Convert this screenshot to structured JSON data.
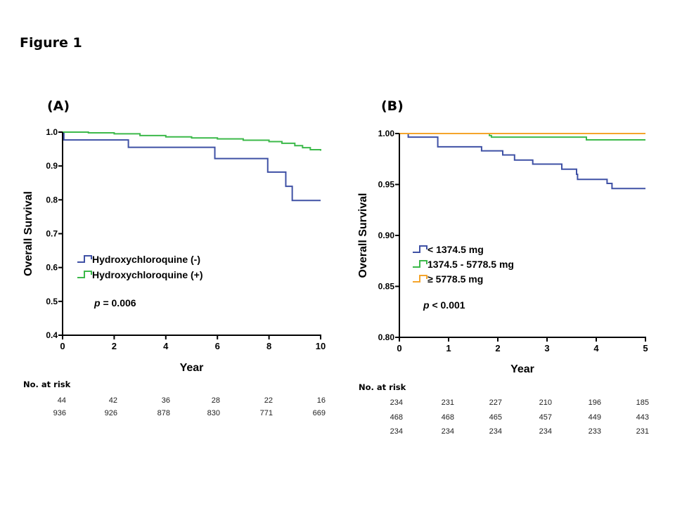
{
  "figure_title": "Figure 1",
  "chart_data": [
    {
      "panel_label": "(A)",
      "type": "line",
      "step": true,
      "xlabel": "Year",
      "ylabel": "Overall Survival",
      "xlim": [
        0,
        10
      ],
      "ylim": [
        0.4,
        1.0
      ],
      "xticks": [
        0,
        2,
        4,
        6,
        8,
        10
      ],
      "yticks": [
        "0.4",
        "0.5",
        "0.6",
        "0.7",
        "0.8",
        "0.9",
        "1.0"
      ],
      "grid": false,
      "legend_placement": "center-left",
      "annotation": {
        "p_symbol": "p",
        "text": " = 0.006"
      },
      "series": [
        {
          "name": "Hydroxychloroquine (-)",
          "color": "#3f51a5",
          "x": [
            0,
            0.05,
            2.55,
            5.9,
            7.95,
            8.65,
            8.9,
            10
          ],
          "y": [
            1.0,
            0.977,
            0.955,
            0.922,
            0.882,
            0.84,
            0.798,
            0.798
          ]
        },
        {
          "name": "Hydroxychloroquine (+)",
          "color": "#3cb94a",
          "x": [
            0,
            1,
            2,
            3,
            4,
            5,
            6,
            7,
            8,
            8.5,
            9,
            9.3,
            9.6,
            10
          ],
          "y": [
            1.0,
            0.998,
            0.995,
            0.99,
            0.986,
            0.983,
            0.98,
            0.976,
            0.972,
            0.967,
            0.96,
            0.954,
            0.948,
            0.945
          ]
        }
      ],
      "risk_table": {
        "title": "No. at risk",
        "rows": [
          [
            "44",
            "42",
            "36",
            "28",
            "22",
            "16"
          ],
          [
            "936",
            "926",
            "878",
            "830",
            "771",
            "669"
          ]
        ]
      }
    },
    {
      "panel_label": "(B)",
      "type": "line",
      "step": true,
      "xlabel": "Year",
      "ylabel": "Overall Survival",
      "xlim": [
        0,
        5
      ],
      "ylim": [
        0.8,
        1.0
      ],
      "xticks": [
        0,
        1,
        2,
        3,
        4,
        5
      ],
      "yticks": [
        "0.80",
        "0.85",
        "0.90",
        "0.95",
        "1.00"
      ],
      "grid": false,
      "legend_placement": "center-left",
      "annotation": {
        "p_symbol": "p",
        "text": " < 0.001"
      },
      "series": [
        {
          "name": "< 1374.5 mg",
          "color": "#3f51a5",
          "x": [
            0,
            0.18,
            0.78,
            1.67,
            2.1,
            2.34,
            2.71,
            3.3,
            3.6,
            3.62,
            4.22,
            4.32,
            5
          ],
          "y": [
            1.0,
            0.9965,
            0.987,
            0.983,
            0.979,
            0.974,
            0.97,
            0.965,
            0.96,
            0.955,
            0.951,
            0.946,
            0.946
          ]
        },
        {
          "name": "1374.5 - 5778.5 mg",
          "color": "#3cb94a",
          "x": [
            0,
            1.83,
            1.87,
            3.8,
            5
          ],
          "y": [
            1.0,
            0.998,
            0.9965,
            0.9938,
            0.9938
          ]
        },
        {
          "name": "≥ 5778.5 mg",
          "color": "#f5a52c",
          "x": [
            0,
            5
          ],
          "y": [
            1.0,
            1.0
          ]
        }
      ],
      "risk_table": {
        "title": "No. at risk",
        "rows": [
          [
            "234",
            "231",
            "227",
            "210",
            "196",
            "185"
          ],
          [
            "468",
            "468",
            "465",
            "457",
            "449",
            "443"
          ],
          [
            "234",
            "234",
            "234",
            "234",
            "233",
            "231"
          ]
        ]
      }
    }
  ]
}
